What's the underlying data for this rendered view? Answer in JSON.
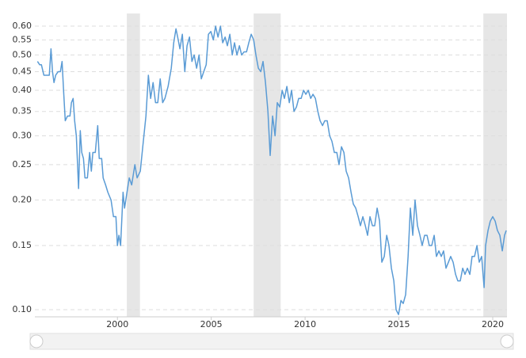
{
  "chart_data": {
    "type": "line",
    "yscale": "log",
    "grid": true,
    "color": "#5a9bd5",
    "recession_color": "#e6e6e6",
    "xlim": [
      1995.6,
      2020.76
    ],
    "xticks": [
      2000,
      2005,
      2010,
      2015,
      2020
    ],
    "ylim": [
      0.0956,
      0.65
    ],
    "yticks": [
      {
        "value": 0.1,
        "label": "0.10"
      },
      0.15,
      {
        "value": 0.2,
        "label": "0.20"
      },
      0.25,
      {
        "value": 0.3,
        "label": "0.30"
      },
      0.35,
      {
        "value": 0.4,
        "label": "0.40"
      },
      0.45,
      {
        "value": 0.5,
        "label": "0.50"
      },
      0.55,
      {
        "value": 0.6,
        "label": "0.60"
      }
    ],
    "recessions": [
      [
        2000.5,
        2001.2
      ],
      [
        2007.26,
        2008.7
      ],
      [
        2019.5,
        2020.76
      ]
    ],
    "x": [
      1995.74,
      1995.86,
      1995.95,
      1996.08,
      1996.2,
      1996.37,
      1996.46,
      1996.54,
      1996.62,
      1996.71,
      1996.84,
      1996.96,
      1997.05,
      1997.13,
      1997.22,
      1997.34,
      1997.47,
      1997.55,
      1997.64,
      1997.72,
      1997.81,
      1997.93,
      1998.02,
      1998.1,
      1998.19,
      1998.27,
      1998.4,
      1998.52,
      1998.61,
      1998.69,
      1998.82,
      1998.95,
      1999.03,
      1999.16,
      1999.24,
      1999.37,
      1999.49,
      1999.66,
      1999.79,
      1999.92,
      2000.0,
      2000.08,
      2000.17,
      2000.3,
      2000.38,
      2000.51,
      2000.63,
      2000.76,
      2000.93,
      2001.05,
      2001.22,
      2001.35,
      2001.52,
      2001.65,
      2001.77,
      2001.9,
      2002.03,
      2002.15,
      2002.28,
      2002.41,
      2002.53,
      2002.7,
      2002.87,
      2003.0,
      2003.12,
      2003.21,
      2003.33,
      2003.46,
      2003.59,
      2003.71,
      2003.84,
      2003.97,
      2004.09,
      2004.22,
      2004.35,
      2004.47,
      2004.6,
      2004.73,
      2004.85,
      2004.98,
      2005.11,
      2005.23,
      2005.36,
      2005.49,
      2005.61,
      2005.74,
      2005.86,
      2005.99,
      2006.12,
      2006.24,
      2006.37,
      2006.5,
      2006.62,
      2006.75,
      2006.88,
      2007.0,
      2007.13,
      2007.26,
      2007.38,
      2007.51,
      2007.64,
      2007.76,
      2007.89,
      2008.02,
      2008.14,
      2008.27,
      2008.4,
      2008.52,
      2008.65,
      2008.78,
      2008.9,
      2009.03,
      2009.16,
      2009.28,
      2009.41,
      2009.54,
      2009.66,
      2009.79,
      2009.92,
      2010.04,
      2010.17,
      2010.3,
      2010.42,
      2010.55,
      2010.68,
      2010.8,
      2010.93,
      2011.05,
      2011.18,
      2011.31,
      2011.43,
      2011.56,
      2011.69,
      2011.81,
      2011.94,
      2012.07,
      2012.19,
      2012.32,
      2012.45,
      2012.57,
      2012.7,
      2012.83,
      2012.95,
      2013.08,
      2013.21,
      2013.33,
      2013.46,
      2013.59,
      2013.71,
      2013.84,
      2013.97,
      2014.09,
      2014.22,
      2014.35,
      2014.47,
      2014.6,
      2014.73,
      2014.85,
      2014.98,
      2015.11,
      2015.23,
      2015.36,
      2015.49,
      2015.61,
      2015.74,
      2015.86,
      2015.99,
      2016.12,
      2016.24,
      2016.37,
      2016.5,
      2016.62,
      2016.75,
      2016.88,
      2017.0,
      2017.13,
      2017.26,
      2017.38,
      2017.51,
      2017.64,
      2017.76,
      2017.89,
      2018.02,
      2018.14,
      2018.27,
      2018.4,
      2018.52,
      2018.65,
      2018.78,
      2018.9,
      2019.03,
      2019.16,
      2019.28,
      2019.41,
      2019.54,
      2019.62,
      2019.75,
      2019.87,
      2020.0,
      2020.13,
      2020.25,
      2020.38,
      2020.51,
      2020.63,
      2020.72
    ],
    "values": [
      0.48,
      0.47,
      0.47,
      0.44,
      0.44,
      0.44,
      0.52,
      0.45,
      0.42,
      0.44,
      0.45,
      0.45,
      0.48,
      0.4,
      0.33,
      0.34,
      0.34,
      0.37,
      0.38,
      0.33,
      0.3,
      0.215,
      0.31,
      0.27,
      0.26,
      0.23,
      0.23,
      0.27,
      0.24,
      0.27,
      0.27,
      0.32,
      0.26,
      0.26,
      0.23,
      0.22,
      0.21,
      0.2,
      0.18,
      0.18,
      0.15,
      0.16,
      0.15,
      0.21,
      0.19,
      0.21,
      0.23,
      0.22,
      0.25,
      0.23,
      0.24,
      0.28,
      0.34,
      0.44,
      0.38,
      0.42,
      0.37,
      0.37,
      0.43,
      0.37,
      0.38,
      0.41,
      0.46,
      0.54,
      0.59,
      0.56,
      0.52,
      0.57,
      0.45,
      0.53,
      0.56,
      0.48,
      0.5,
      0.46,
      0.5,
      0.43,
      0.45,
      0.47,
      0.57,
      0.58,
      0.55,
      0.6,
      0.56,
      0.6,
      0.54,
      0.56,
      0.53,
      0.57,
      0.5,
      0.54,
      0.5,
      0.53,
      0.5,
      0.51,
      0.51,
      0.54,
      0.57,
      0.55,
      0.5,
      0.46,
      0.45,
      0.48,
      0.42,
      0.35,
      0.265,
      0.34,
      0.3,
      0.37,
      0.36,
      0.4,
      0.38,
      0.41,
      0.37,
      0.4,
      0.35,
      0.36,
      0.38,
      0.38,
      0.4,
      0.39,
      0.4,
      0.38,
      0.39,
      0.38,
      0.35,
      0.33,
      0.32,
      0.33,
      0.33,
      0.3,
      0.29,
      0.27,
      0.27,
      0.25,
      0.28,
      0.27,
      0.24,
      0.23,
      0.21,
      0.195,
      0.19,
      0.18,
      0.17,
      0.18,
      0.17,
      0.16,
      0.18,
      0.17,
      0.17,
      0.19,
      0.175,
      0.135,
      0.14,
      0.16,
      0.15,
      0.13,
      0.12,
      0.1,
      0.097,
      0.106,
      0.104,
      0.11,
      0.14,
      0.19,
      0.16,
      0.2,
      0.17,
      0.16,
      0.15,
      0.16,
      0.16,
      0.15,
      0.15,
      0.16,
      0.14,
      0.145,
      0.14,
      0.145,
      0.13,
      0.135,
      0.14,
      0.135,
      0.125,
      0.12,
      0.12,
      0.13,
      0.125,
      0.13,
      0.125,
      0.14,
      0.14,
      0.15,
      0.135,
      0.14,
      0.115,
      0.15,
      0.165,
      0.175,
      0.18,
      0.175,
      0.165,
      0.16,
      0.145,
      0.16,
      0.165
    ]
  }
}
